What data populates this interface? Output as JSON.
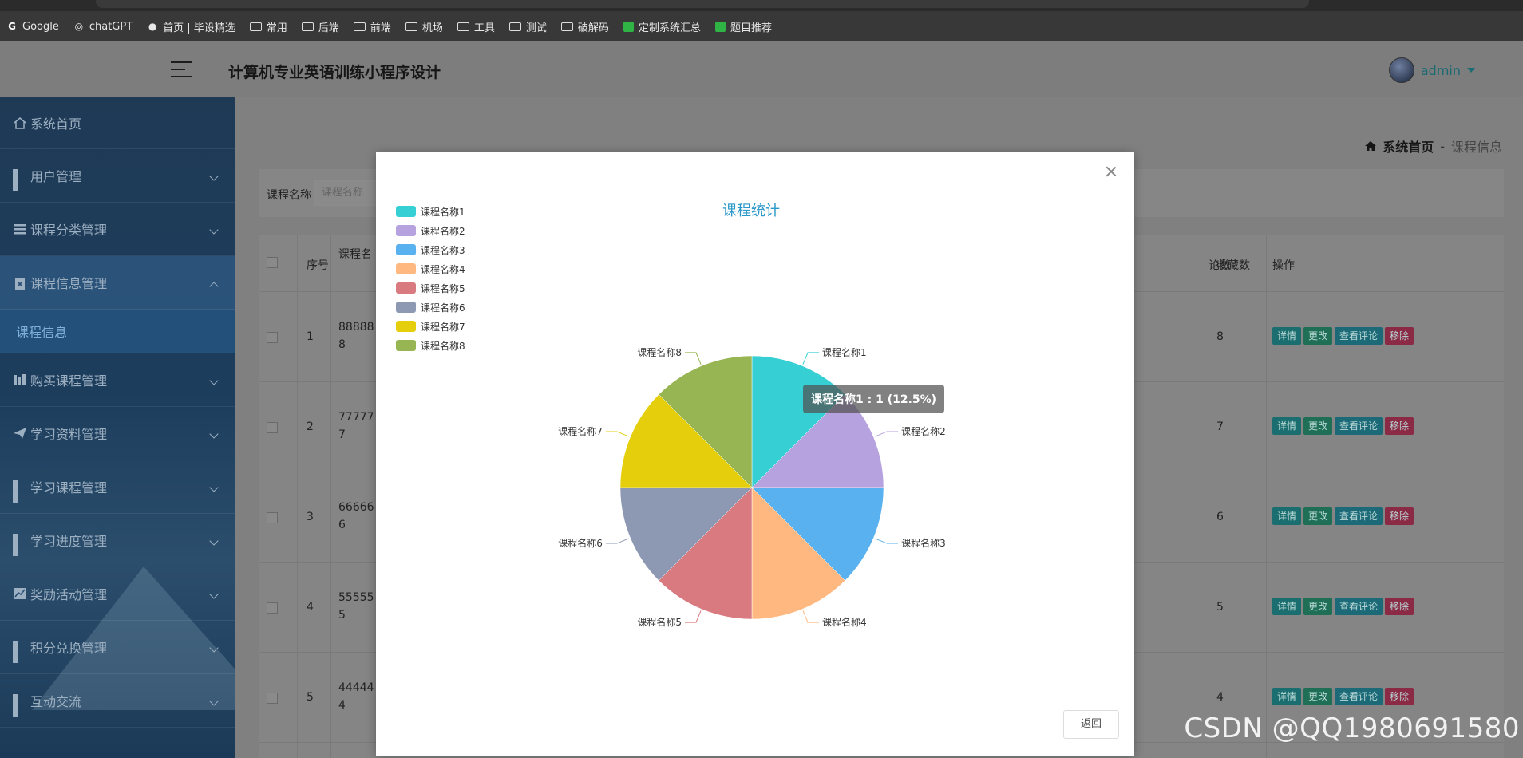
{
  "bookmarks": [
    {
      "label": "Google",
      "icon": "google-icon"
    },
    {
      "label": "chatGPT",
      "icon": "chatgpt-icon"
    },
    {
      "label": "首页 | 毕设精选",
      "icon": "site-icon"
    },
    {
      "label": "常用",
      "icon": "folder-icon"
    },
    {
      "label": "后端",
      "icon": "folder-icon"
    },
    {
      "label": "前端",
      "icon": "folder-icon"
    },
    {
      "label": "机场",
      "icon": "folder-icon"
    },
    {
      "label": "工具",
      "icon": "folder-icon"
    },
    {
      "label": "测试",
      "icon": "folder-icon"
    },
    {
      "label": "破解码",
      "icon": "folder-icon"
    },
    {
      "label": "定制系统汇总",
      "icon": "sheet-icon"
    },
    {
      "label": "题目推荐",
      "icon": "sheet-icon"
    }
  ],
  "header": {
    "title": "计算机专业英语训练小程序设计",
    "user": "admin"
  },
  "sidebar": {
    "items": [
      {
        "label": "系统首页",
        "icon": "home-icon"
      },
      {
        "label": "用户管理",
        "icon": "grid-icon"
      },
      {
        "label": "课程分类管理",
        "icon": "list-icon"
      },
      {
        "label": "课程信息管理",
        "icon": "clipboard-icon",
        "expanded": true
      },
      {
        "label": "购买课程管理",
        "icon": "books-icon"
      },
      {
        "label": "学习资料管理",
        "icon": "send-icon"
      },
      {
        "label": "学习课程管理",
        "icon": "grid-icon"
      },
      {
        "label": "学习进度管理",
        "icon": "grid-icon"
      },
      {
        "label": "奖励活动管理",
        "icon": "chart-icon"
      },
      {
        "label": "积分兑换管理",
        "icon": "grid-icon"
      },
      {
        "label": "互动交流",
        "icon": "grid-icon"
      }
    ],
    "submenu": "课程信息"
  },
  "breadcrumb": {
    "home": "系统首页",
    "sep": "-",
    "current": "课程信息"
  },
  "search": {
    "label": "课程名称",
    "placeholder": "课程名称"
  },
  "table": {
    "headers": {
      "index": "序号",
      "name": "课程名",
      "comments": "论数",
      "favorites": "收藏数",
      "ops": "操作"
    },
    "rows": [
      {
        "index": "1",
        "name_line1": "88888",
        "name_line2": "8",
        "favorites": "8"
      },
      {
        "index": "2",
        "name_line1": "77777",
        "name_line2": "7",
        "favorites": "7"
      },
      {
        "index": "3",
        "name_line1": "66666",
        "name_line2": "6",
        "favorites": "6"
      },
      {
        "index": "4",
        "name_line1": "55555",
        "name_line2": "5",
        "favorites": "5"
      },
      {
        "index": "5",
        "name_line1": "44444",
        "name_line2": "4",
        "favorites": "4"
      }
    ],
    "ops": {
      "detail": "详情",
      "edit": "更改",
      "comments": "查看评论",
      "remove": "移除"
    }
  },
  "modal": {
    "back_label": "返回",
    "tooltip": "课程名称1 : 1 (12.5%)"
  },
  "chart_data": {
    "type": "pie",
    "title": "课程统计",
    "legend_position": "top-left",
    "categories": [
      "课程名称1",
      "课程名称2",
      "课程名称3",
      "课程名称4",
      "课程名称5",
      "课程名称6",
      "课程名称7",
      "课程名称8"
    ],
    "values": [
      1,
      1,
      1,
      1,
      1,
      1,
      1,
      1
    ],
    "colors": [
      "#36cfd3",
      "#b6a2de",
      "#5ab1ef",
      "#ffb980",
      "#d87a80",
      "#8d98b3",
      "#e5cf0d",
      "#97b552"
    ]
  },
  "watermark": "CSDN @QQ1980691580"
}
